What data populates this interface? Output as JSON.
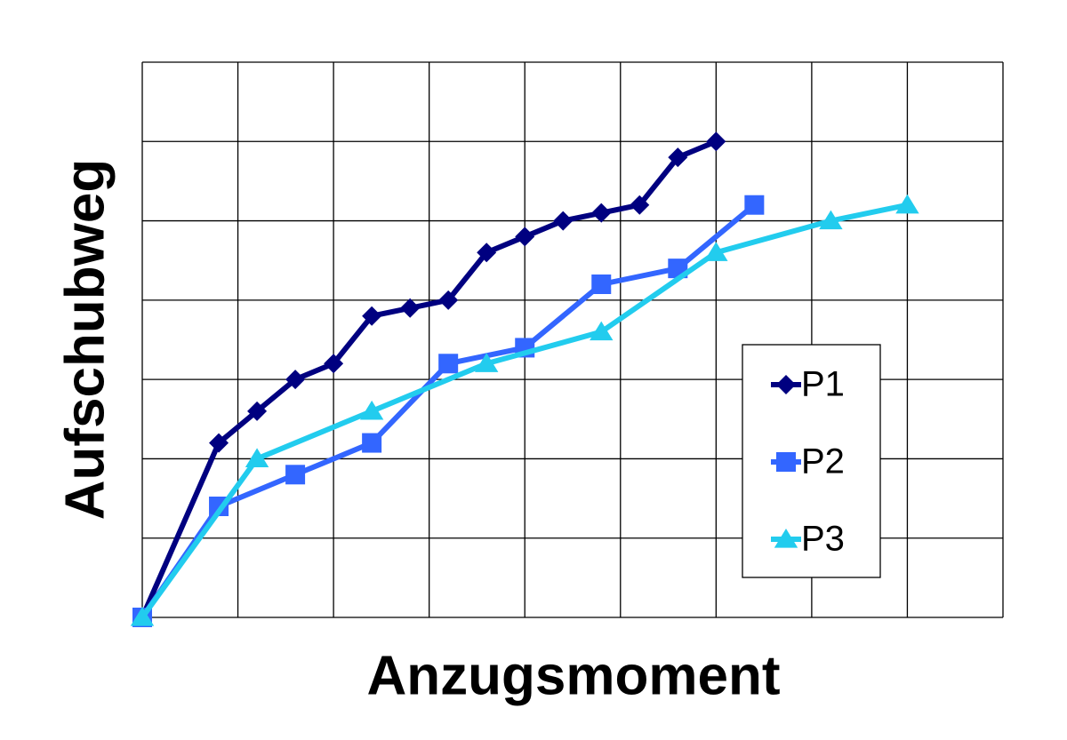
{
  "chart_data": {
    "type": "line",
    "x_label": "Anzugsmoment",
    "y_label": "Aufschubweg",
    "xlim": [
      0,
      9
    ],
    "ylim": [
      0,
      7
    ],
    "xticks": [
      0,
      1,
      2,
      3,
      4,
      5,
      6,
      7,
      8,
      9
    ],
    "yticks": [
      0,
      1,
      2,
      3,
      4,
      5,
      6,
      7
    ],
    "tick_labels": false,
    "grid": true,
    "legend": "right",
    "series": [
      {
        "name": "P1",
        "color": "#000080",
        "marker": "diamond",
        "x": [
          0,
          0.8,
          1.2,
          1.6,
          2.0,
          2.4,
          2.8,
          3.2,
          3.6,
          4.0,
          4.4,
          4.8,
          5.2,
          5.6,
          6.0
        ],
        "values": [
          0,
          2.2,
          2.6,
          3.0,
          3.2,
          3.8,
          3.9,
          4.0,
          4.6,
          4.8,
          5.0,
          5.1,
          5.2,
          5.8,
          6.0
        ]
      },
      {
        "name": "P2",
        "color": "#3366ff",
        "marker": "square",
        "x": [
          0,
          0.8,
          1.6,
          2.4,
          3.2,
          4.0,
          4.8,
          5.6,
          6.4
        ],
        "values": [
          0,
          1.4,
          1.8,
          2.2,
          3.2,
          3.4,
          4.2,
          4.4,
          5.2
        ]
      },
      {
        "name": "P3",
        "color": "#22ccee",
        "marker": "triangle",
        "x": [
          0,
          1.2,
          2.4,
          3.6,
          4.8,
          6.0,
          7.2,
          8.0
        ],
        "values": [
          0,
          2.0,
          2.6,
          3.2,
          3.6,
          4.6,
          5.0,
          5.2
        ]
      }
    ]
  }
}
